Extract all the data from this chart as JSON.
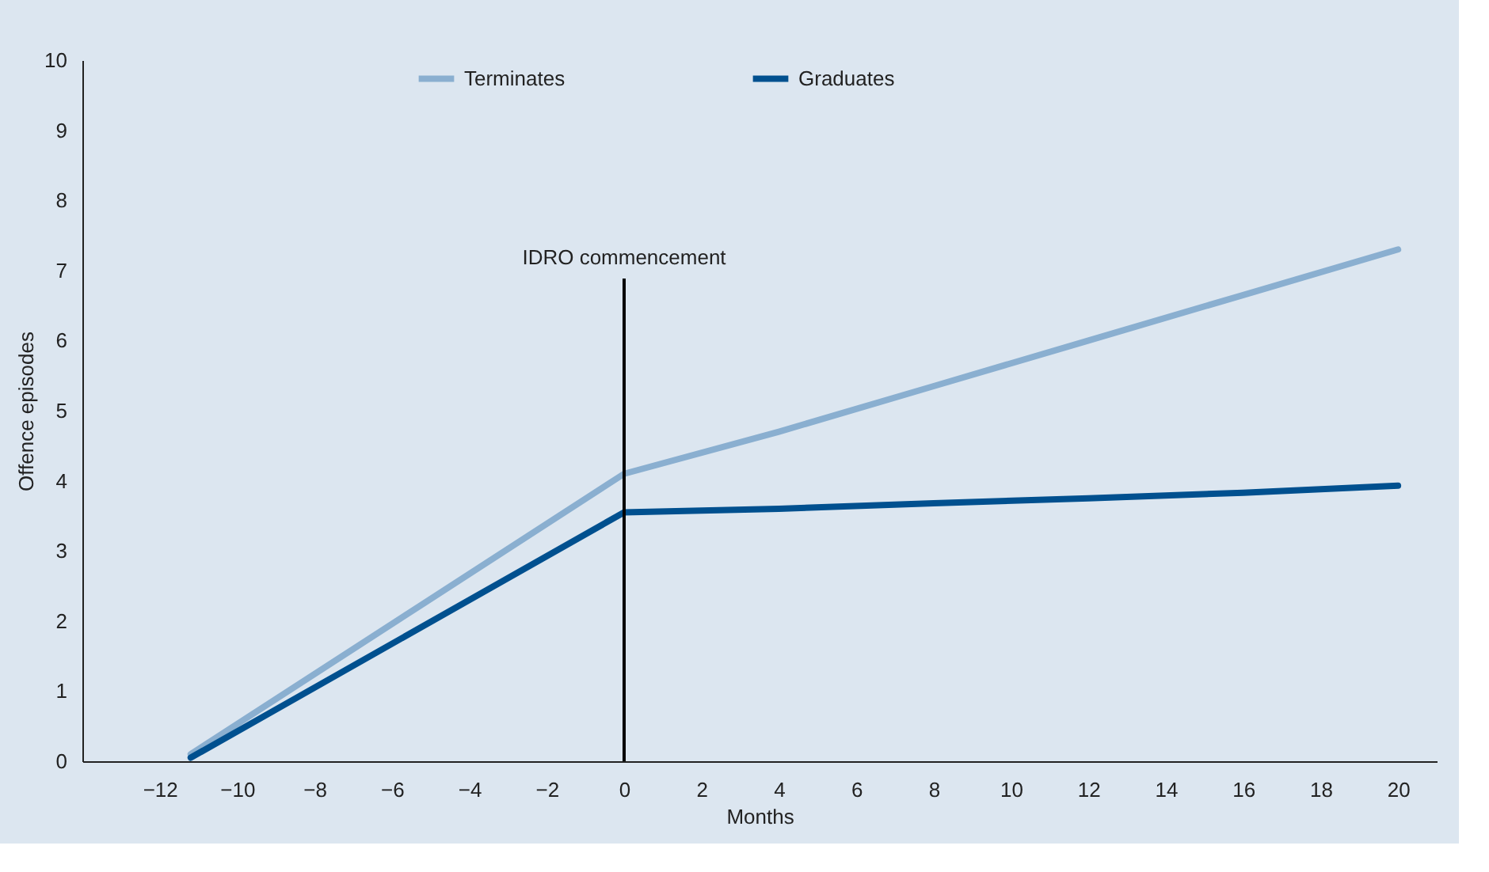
{
  "chart_data": {
    "type": "line",
    "xlabel": "Months",
    "ylabel": "Offence episodes",
    "xlim": [
      -14,
      21
    ],
    "xticks": [
      -12,
      -10,
      -8,
      -6,
      -4,
      -2,
      0,
      2,
      4,
      6,
      8,
      10,
      12,
      14,
      16,
      18,
      20
    ],
    "ylim": [
      0,
      10
    ],
    "yticks": [
      0,
      1,
      2,
      3,
      4,
      5,
      6,
      7,
      8,
      9,
      10
    ],
    "grid": false,
    "legend": "top",
    "marker": "none",
    "line_style": "solid",
    "series": [
      {
        "name": "Terminates",
        "color": "#8aafd0",
        "x": [
          -11.2,
          0,
          4,
          8,
          12,
          16,
          20
        ],
        "values": [
          0.1,
          4.1,
          4.7,
          5.35,
          6.0,
          6.65,
          7.3
        ]
      },
      {
        "name": "Graduates",
        "color": "#00508f",
        "x": [
          -11.2,
          0,
          4,
          8,
          12,
          16,
          20
        ],
        "values": [
          0.05,
          3.55,
          3.6,
          3.68,
          3.75,
          3.83,
          3.93
        ]
      }
    ],
    "ref_lines": [
      {
        "axis": "x",
        "value": 0,
        "label": "IDRO commencement",
        "color": "#000000",
        "line_style": "solid"
      }
    ]
  }
}
